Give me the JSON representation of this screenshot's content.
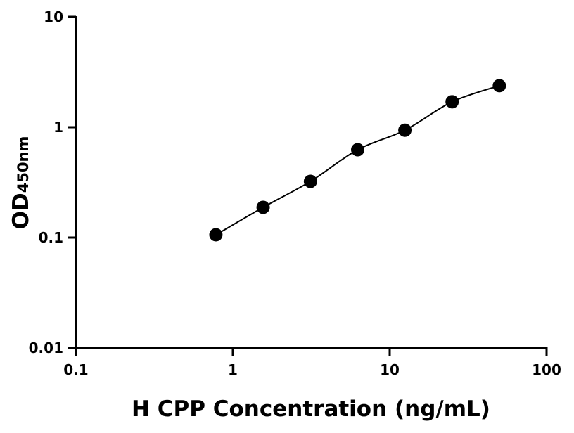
{
  "chart_data": {
    "type": "scatter",
    "title": "",
    "xlabel": "H CPP Concentration (ng/mL)",
    "ylabel": "OD",
    "ylabel_subscript": "450nm",
    "x_scale": "log",
    "y_scale": "log",
    "xlim": [
      0.1,
      100
    ],
    "ylim": [
      0.01,
      10
    ],
    "x_ticks": [
      "0.1",
      "1",
      "10",
      "100"
    ],
    "y_ticks": [
      "10",
      "1",
      "0.1",
      "0.01"
    ],
    "grid": false,
    "fit_curve": true,
    "marker_color": "#000000",
    "series": [
      {
        "x": [
          0.78,
          1.56,
          3.125,
          6.25,
          12.5,
          25,
          50
        ],
        "y": [
          0.106,
          0.188,
          0.323,
          0.625,
          0.94,
          1.7,
          2.38
        ]
      }
    ]
  }
}
